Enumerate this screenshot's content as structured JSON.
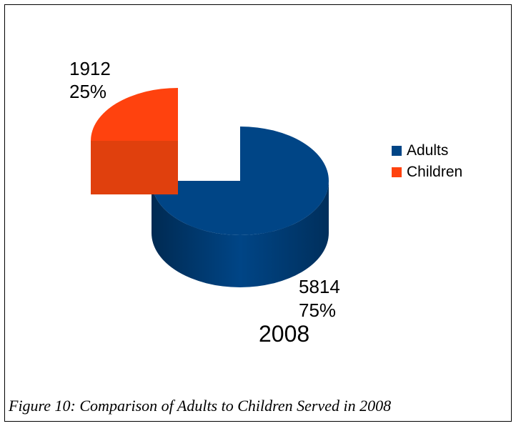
{
  "chart_data": {
    "type": "pie",
    "title": "2008",
    "categories": [
      "Adults",
      "Children"
    ],
    "values": [
      5814,
      1912
    ],
    "percentages": [
      "75%",
      "25%"
    ],
    "series": [
      {
        "name": "Adults",
        "value": 5814,
        "label_value": "5814",
        "label_percent": "75%",
        "color": "#004586",
        "side_color": "#003566"
      },
      {
        "name": "Children",
        "value": 1912,
        "label_value": "1912",
        "label_percent": "25%",
        "color": "#ff420e",
        "side_color": "#e0400d"
      }
    ],
    "legend_placement": "right",
    "style": "3d-exploded"
  },
  "caption": "Figure 10: Comparison of Adults to Children Served in 2008"
}
